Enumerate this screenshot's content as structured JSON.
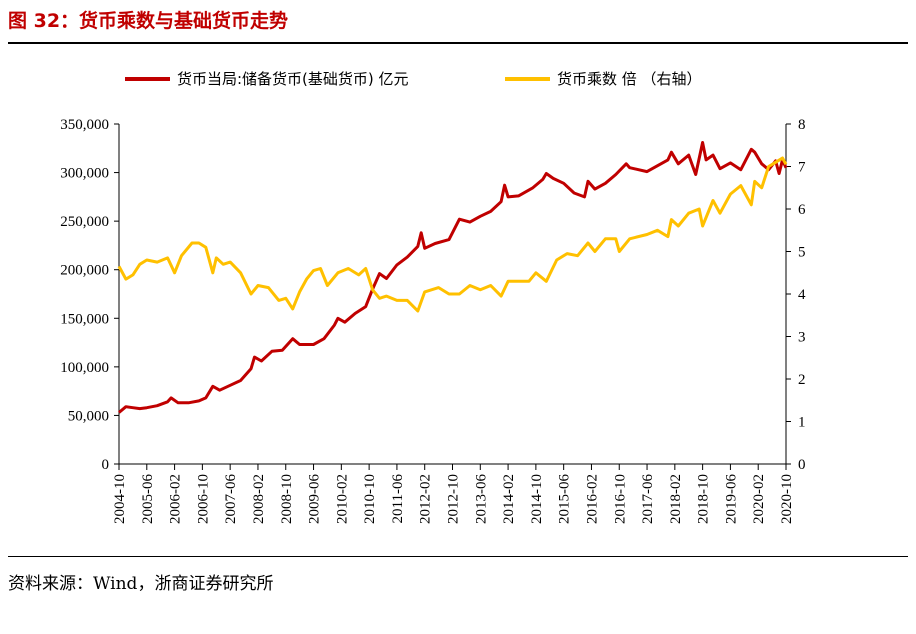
{
  "figure": {
    "title": "图 32：货币乘数与基础货币走势",
    "source": "资料来源：Wind，浙商证券研究所"
  },
  "colors": {
    "series1": "#c00000",
    "series2": "#ffc000",
    "title": "#c00000"
  },
  "chart_data": {
    "type": "line",
    "title": "货币乘数与基础货币走势",
    "legend": "top",
    "x_ticks": [
      "2004-10",
      "2005-06",
      "2006-02",
      "2006-10",
      "2007-06",
      "2008-02",
      "2008-10",
      "2009-06",
      "2010-02",
      "2010-10",
      "2011-06",
      "2012-02",
      "2012-10",
      "2013-06",
      "2014-02",
      "2014-10",
      "2015-06",
      "2016-02",
      "2016-10",
      "2017-06",
      "2018-02",
      "2018-10",
      "2019-06",
      "2020-02",
      "2020-10"
    ],
    "x_range": [
      "2004-10",
      "2020-10"
    ],
    "y_left": {
      "range": [
        0,
        350000
      ],
      "ticks": [
        "0",
        "50,000",
        "100,000",
        "150,000",
        "200,000",
        "250,000",
        "300,000",
        "350,000"
      ]
    },
    "y_right": {
      "range": [
        0,
        8
      ],
      "ticks": [
        "0",
        "1",
        "2",
        "3",
        "4",
        "5",
        "6",
        "7",
        "8"
      ]
    },
    "series": [
      {
        "name": "货币当局:储备货币(基础货币) 亿元",
        "axis": "left",
        "points": [
          [
            "2004-10",
            53000
          ],
          [
            "2004-12",
            59000
          ],
          [
            "2005-02",
            58000
          ],
          [
            "2005-04",
            57000
          ],
          [
            "2005-06",
            58000
          ],
          [
            "2005-09",
            60000
          ],
          [
            "2005-12",
            64000
          ],
          [
            "2006-01",
            68000
          ],
          [
            "2006-03",
            63000
          ],
          [
            "2006-06",
            63000
          ],
          [
            "2006-09",
            65000
          ],
          [
            "2006-11",
            68000
          ],
          [
            "2007-01",
            80000
          ],
          [
            "2007-03",
            76000
          ],
          [
            "2007-06",
            81000
          ],
          [
            "2007-09",
            86000
          ],
          [
            "2007-12",
            98000
          ],
          [
            "2008-01",
            110000
          ],
          [
            "2008-03",
            106000
          ],
          [
            "2008-06",
            116000
          ],
          [
            "2008-09",
            117000
          ],
          [
            "2008-12",
            129000
          ],
          [
            "2009-02",
            123000
          ],
          [
            "2009-06",
            123000
          ],
          [
            "2009-09",
            129000
          ],
          [
            "2009-12",
            143000
          ],
          [
            "2010-01",
            150000
          ],
          [
            "2010-03",
            146000
          ],
          [
            "2010-06",
            155000
          ],
          [
            "2010-09",
            162000
          ],
          [
            "2010-11",
            180000
          ],
          [
            "2011-01",
            196000
          ],
          [
            "2011-03",
            191000
          ],
          [
            "2011-06",
            205000
          ],
          [
            "2011-09",
            213000
          ],
          [
            "2011-12",
            224000
          ],
          [
            "2012-01",
            238000
          ],
          [
            "2012-02",
            222000
          ],
          [
            "2012-05",
            227000
          ],
          [
            "2012-09",
            231000
          ],
          [
            "2012-12",
            252000
          ],
          [
            "2013-03",
            249000
          ],
          [
            "2013-06",
            255000
          ],
          [
            "2013-09",
            260000
          ],
          [
            "2013-12",
            270000
          ],
          [
            "2014-01",
            287000
          ],
          [
            "2014-02",
            275000
          ],
          [
            "2014-05",
            276000
          ],
          [
            "2014-09",
            284000
          ],
          [
            "2014-12",
            293000
          ],
          [
            "2015-01",
            299000
          ],
          [
            "2015-03",
            294000
          ],
          [
            "2015-06",
            289000
          ],
          [
            "2015-09",
            279000
          ],
          [
            "2015-12",
            275000
          ],
          [
            "2016-01",
            291000
          ],
          [
            "2016-03",
            283000
          ],
          [
            "2016-06",
            289000
          ],
          [
            "2016-09",
            298000
          ],
          [
            "2016-12",
            309000
          ],
          [
            "2017-01",
            305000
          ],
          [
            "2017-06",
            301000
          ],
          [
            "2017-12",
            313000
          ],
          [
            "2018-01",
            321000
          ],
          [
            "2018-03",
            309000
          ],
          [
            "2018-06",
            318000
          ],
          [
            "2018-08",
            298000
          ],
          [
            "2018-10",
            331000
          ],
          [
            "2018-11",
            313000
          ],
          [
            "2019-01",
            318000
          ],
          [
            "2019-03",
            304000
          ],
          [
            "2019-06",
            310000
          ],
          [
            "2019-09",
            303000
          ],
          [
            "2019-12",
            324000
          ],
          [
            "2020-01",
            321000
          ],
          [
            "2020-03",
            309000
          ],
          [
            "2020-05",
            303000
          ],
          [
            "2020-07",
            312000
          ],
          [
            "2020-08",
            299000
          ],
          [
            "2020-09",
            313000
          ],
          [
            "2020-10",
            305000
          ]
        ]
      },
      {
        "name": "货币乘数 倍 （右轴）",
        "axis": "right",
        "points": [
          [
            "2004-10",
            4.65
          ],
          [
            "2004-12",
            4.35
          ],
          [
            "2005-02",
            4.45
          ],
          [
            "2005-04",
            4.7
          ],
          [
            "2005-06",
            4.8
          ],
          [
            "2005-09",
            4.75
          ],
          [
            "2005-12",
            4.85
          ],
          [
            "2006-02",
            4.5
          ],
          [
            "2006-04",
            4.9
          ],
          [
            "2006-07",
            5.2
          ],
          [
            "2006-09",
            5.2
          ],
          [
            "2006-11",
            5.1
          ],
          [
            "2007-01",
            4.5
          ],
          [
            "2007-02",
            4.85
          ],
          [
            "2007-04",
            4.7
          ],
          [
            "2007-06",
            4.75
          ],
          [
            "2007-09",
            4.5
          ],
          [
            "2007-12",
            4.0
          ],
          [
            "2008-02",
            4.2
          ],
          [
            "2008-05",
            4.15
          ],
          [
            "2008-08",
            3.85
          ],
          [
            "2008-10",
            3.9
          ],
          [
            "2008-12",
            3.65
          ],
          [
            "2009-02",
            4.05
          ],
          [
            "2009-04",
            4.35
          ],
          [
            "2009-06",
            4.55
          ],
          [
            "2009-08",
            4.6
          ],
          [
            "2009-10",
            4.2
          ],
          [
            "2010-01",
            4.5
          ],
          [
            "2010-04",
            4.6
          ],
          [
            "2010-07",
            4.45
          ],
          [
            "2010-09",
            4.6
          ],
          [
            "2010-11",
            4.1
          ],
          [
            "2011-01",
            3.9
          ],
          [
            "2011-03",
            3.95
          ],
          [
            "2011-06",
            3.85
          ],
          [
            "2011-09",
            3.85
          ],
          [
            "2011-12",
            3.6
          ],
          [
            "2012-02",
            4.05
          ],
          [
            "2012-06",
            4.15
          ],
          [
            "2012-09",
            4.0
          ],
          [
            "2012-12",
            4.0
          ],
          [
            "2013-03",
            4.2
          ],
          [
            "2013-06",
            4.1
          ],
          [
            "2013-09",
            4.2
          ],
          [
            "2013-12",
            3.95
          ],
          [
            "2014-02",
            4.3
          ],
          [
            "2014-05",
            4.3
          ],
          [
            "2014-08",
            4.3
          ],
          [
            "2014-10",
            4.5
          ],
          [
            "2015-01",
            4.3
          ],
          [
            "2015-04",
            4.8
          ],
          [
            "2015-07",
            4.95
          ],
          [
            "2015-10",
            4.9
          ],
          [
            "2016-01",
            5.2
          ],
          [
            "2016-03",
            5.0
          ],
          [
            "2016-06",
            5.3
          ],
          [
            "2016-09",
            5.3
          ],
          [
            "2016-10",
            5.0
          ],
          [
            "2017-01",
            5.3
          ],
          [
            "2017-06",
            5.4
          ],
          [
            "2017-09",
            5.5
          ],
          [
            "2017-12",
            5.35
          ],
          [
            "2018-01",
            5.75
          ],
          [
            "2018-03",
            5.6
          ],
          [
            "2018-06",
            5.9
          ],
          [
            "2018-09",
            6.0
          ],
          [
            "2018-10",
            5.6
          ],
          [
            "2019-01",
            6.2
          ],
          [
            "2019-03",
            5.9
          ],
          [
            "2019-06",
            6.35
          ],
          [
            "2019-09",
            6.55
          ],
          [
            "2019-12",
            6.1
          ],
          [
            "2020-01",
            6.65
          ],
          [
            "2020-03",
            6.5
          ],
          [
            "2020-05",
            7.0
          ],
          [
            "2020-07",
            7.1
          ],
          [
            "2020-09",
            7.2
          ],
          [
            "2020-10",
            7.05
          ]
        ]
      }
    ]
  }
}
